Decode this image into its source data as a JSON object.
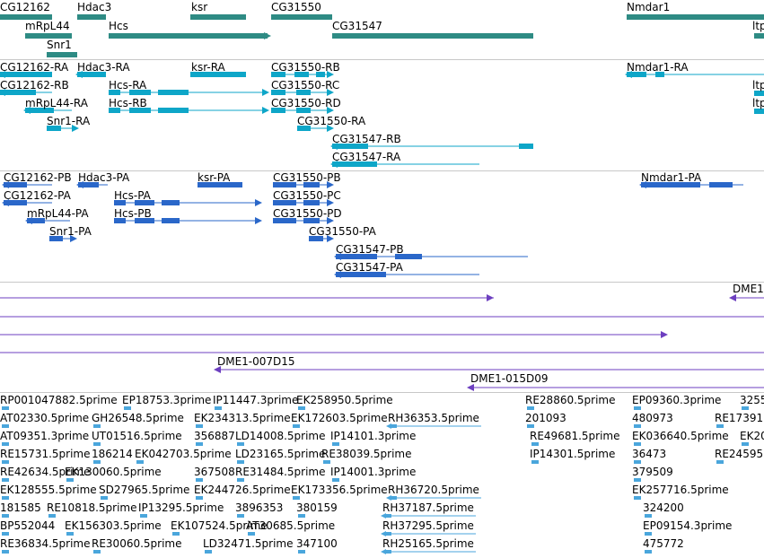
{
  "colors": {
    "gene": "#2e8b84",
    "transcript": "#0ea6c8",
    "protein": "#2a67c9",
    "alignment": "#6d3fc0",
    "est": "#4aa6dc"
  },
  "genes": [
    "CG12162",
    "Hdac3",
    "ksr",
    "CG31550",
    "Nmdar1",
    "mRpL44",
    "Hcs",
    "CG31547",
    "Snr1",
    "ltp"
  ],
  "transcripts": [
    "CG12162-RA",
    "Hdac3-RA",
    "ksr-RA",
    "CG31550-RB",
    "Nmdar1-RA",
    "CG12162-RB",
    "Hcs-RA",
    "CG31550-RC",
    "mRpL44-RA",
    "Hcs-RB",
    "CG31550-RD",
    "Snr1-RA",
    "CG31550-RA",
    "CG31547-RB",
    "CG31547-RA"
  ],
  "proteins": [
    "CG12162-PB",
    "Hdac3-PA",
    "ksr-PA",
    "CG31550-PB",
    "Nmdar1-PA",
    "CG12162-PA",
    "Hcs-PA",
    "CG31550-PC",
    "mRpL44-PA",
    "Hcs-PB",
    "CG31550-PD",
    "Snr1-PA",
    "CG31550-PA",
    "CG31547-PB",
    "CG31547-PA"
  ],
  "alignments": [
    "DME1",
    "DME1-007D15",
    "DME1-015D09"
  ],
  "ests": [
    "RP001047882.5prime",
    "EP18753.3prime",
    "IP11447.3prime",
    "EK258950.5prime",
    "RE28860.5prime",
    "EP09360.3prime",
    "3255",
    "AT02330.5prime",
    "GH26548.5prime",
    "EK234313.5prime",
    "EK172603.5prime",
    "RH36353.5prime",
    "201093",
    "480973",
    "RE17391",
    "AT09351.3prime",
    "UT01516.5prime",
    "356887",
    "LD14008.5prime",
    "IP14101.3prime",
    "RE49681.5prime",
    "EK036640.5prime",
    "EK20",
    "RE15731.5prime",
    "186214",
    "EK042703.5prime",
    "LD23165.5prime",
    "RE38039.5prime",
    "IP14301.5prime",
    "36473",
    "RE24595",
    "RE42634.5prime",
    "EK130060.5prime",
    "367508",
    "RE31484.5prime",
    "IP14001.3prime",
    "379509",
    "EK128555.5prime",
    "SD27965.5prime",
    "EK244726.5prime",
    "EK173356.5prime",
    "RH36720.5prime",
    "EK257716.5prime",
    "181585",
    "RE10818.5prime",
    "IP13295.5prime",
    "3896353",
    "380159",
    "RH37187.5prime",
    "324200",
    "BP552044",
    "EK156303.5prime",
    "EK107524.5prime",
    "AT30685.5prime",
    "RH37295.5prime",
    "EP09154.3prime",
    "RE36834.5prime",
    "RE30060.5prime",
    "LD32471.5prime",
    "347100",
    "RH25165.5prime",
    "475772"
  ]
}
